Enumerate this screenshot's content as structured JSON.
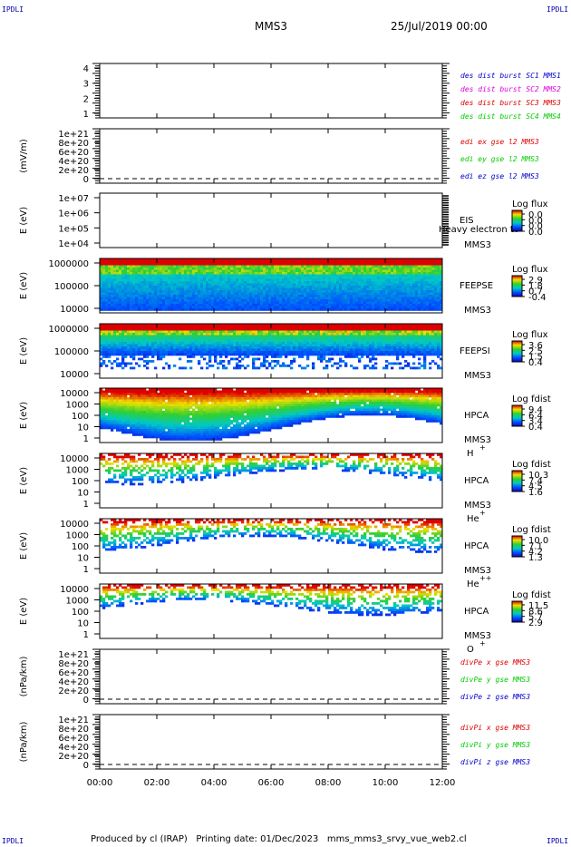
{
  "header": {
    "corner_labels": [
      "IPDLI",
      "IPDLI",
      "IPDLI",
      "IPDLI"
    ],
    "spacecraft": "MMS3",
    "datetime": "25/Jul/2019 00:00"
  },
  "footer": {
    "produced_by": "Produced by cl (IRAP)",
    "printing_date": "Printing date: 01/Dec/2023",
    "filename": "mms_mms3_srvy_vue_web2.cl"
  },
  "time_axis": {
    "ticks": [
      "00:00",
      "02:00",
      "04:00",
      "06:00",
      "08:00",
      "10:00",
      "12:00"
    ],
    "range_hours": [
      0,
      12
    ]
  },
  "colors": {
    "blue": "#0000cc",
    "magenta": "#dd00dd",
    "red": "#dd0000",
    "green": "#00cc00"
  },
  "chart_data": [
    {
      "type": "line",
      "id": "des-dist-burst",
      "yticks": [
        "4",
        "3",
        "2",
        "1"
      ],
      "ylim": [
        0.5,
        4.5
      ],
      "legend": [
        {
          "text": "des dist burst SC1 MMS1",
          "color": "#0000cc"
        },
        {
          "text": "des dist burst SC2 MMS2",
          "color": "#dd00dd"
        },
        {
          "text": "des dist burst SC3 MMS3",
          "color": "#dd0000"
        },
        {
          "text": "des dist burst SC4 MMS4",
          "color": "#00cc00"
        }
      ]
    },
    {
      "type": "line",
      "id": "edi-e-field",
      "ylabel": "(mV/m)",
      "yticks": [
        "1e+21",
        "8e+20",
        "6e+20",
        "4e+20",
        "2e+20",
        "0"
      ],
      "legend": [
        {
          "text": "edi ex gse l2 MMS3",
          "color": "#dd0000"
        },
        {
          "text": "edi ey gse l2 MMS3",
          "color": "#00cc00"
        },
        {
          "text": "edi ez gse l2 MMS3",
          "color": "#0000cc"
        }
      ]
    },
    {
      "type": "heatmap",
      "id": "eis",
      "ylabel": "E (eV)",
      "yticks": [
        "1e+07",
        "1e+06",
        "1e+05",
        "1e+04"
      ],
      "instrument": [
        "EIS",
        "MMS3"
      ],
      "overlay_text": "Heavy electron to",
      "colorbar_title": "Log flux",
      "colorbar_ticks": [
        "0.0",
        "0.0",
        "0.0",
        "0.0"
      ]
    },
    {
      "type": "heatmap",
      "id": "feepse",
      "ylabel": "E (eV)",
      "yticks": [
        "1000000",
        "100000",
        "10000"
      ],
      "instrument": [
        "FEEPSE",
        "MMS3"
      ],
      "colorbar_title": "Log flux",
      "colorbar_ticks": [
        "2.9",
        "1.8",
        "0.7",
        "-0.4"
      ]
    },
    {
      "type": "heatmap",
      "id": "feepsi",
      "ylabel": "E (eV)",
      "yticks": [
        "1000000",
        "100000",
        "10000"
      ],
      "instrument": [
        "FEEPSI",
        "MMS3"
      ],
      "colorbar_title": "Log flux",
      "colorbar_ticks": [
        "3.6",
        "2.5",
        "1.5",
        "0.4"
      ]
    },
    {
      "type": "heatmap",
      "id": "hpca-h",
      "ylabel": "E (eV)",
      "yticks": [
        "10000",
        "1000",
        "100",
        "10",
        "1"
      ],
      "instrument": [
        "HPCA",
        "MMS3"
      ],
      "species": "H",
      "charge": "+",
      "colorbar_title": "Log fdist",
      "colorbar_ticks": [
        "9.4",
        "6.4",
        "3.4",
        "0.4"
      ]
    },
    {
      "type": "heatmap",
      "id": "hpca-he",
      "ylabel": "E (eV)",
      "yticks": [
        "10000",
        "1000",
        "100",
        "10",
        "1"
      ],
      "instrument": [
        "HPCA",
        "MMS3"
      ],
      "species": "He",
      "charge": "+",
      "colorbar_title": "Log fdist",
      "colorbar_ticks": [
        "10.3",
        "7.4",
        "4.5",
        "1.6"
      ]
    },
    {
      "type": "heatmap",
      "id": "hpca-he2",
      "ylabel": "E (eV)",
      "yticks": [
        "10000",
        "1000",
        "100",
        "10",
        "1"
      ],
      "instrument": [
        "HPCA",
        "MMS3"
      ],
      "species": "He",
      "charge": "++",
      "colorbar_title": "Log fdist",
      "colorbar_ticks": [
        "10.0",
        "7.1",
        "4.2",
        "1.3"
      ]
    },
    {
      "type": "heatmap",
      "id": "hpca-o",
      "ylabel": "E (eV)",
      "yticks": [
        "10000",
        "1000",
        "100",
        "10",
        "1"
      ],
      "instrument": [
        "HPCA",
        "MMS3"
      ],
      "species": "O",
      "charge": "+",
      "colorbar_title": "Log fdist",
      "colorbar_ticks": [
        "11.5",
        "8.6",
        "5.7",
        "2.9"
      ]
    },
    {
      "type": "line",
      "id": "divpe",
      "ylabel": "(nPa/km)",
      "yticks": [
        "1e+21",
        "8e+20",
        "6e+20",
        "4e+20",
        "2e+20",
        "0"
      ],
      "legend": [
        {
          "text": "divPe x gse MMS3",
          "color": "#dd0000"
        },
        {
          "text": "divPe y gse MMS3",
          "color": "#00cc00"
        },
        {
          "text": "divPe z gse MMS3",
          "color": "#0000cc"
        }
      ]
    },
    {
      "type": "line",
      "id": "divpi",
      "ylabel": "(nPa/km)",
      "yticks": [
        "1e+21",
        "8e+20",
        "6e+20",
        "4e+20",
        "2e+20",
        "0"
      ],
      "legend": [
        {
          "text": "divPi x gse MMS3",
          "color": "#dd0000"
        },
        {
          "text": "divPi y gse MMS3",
          "color": "#00cc00"
        },
        {
          "text": "divPi z gse MMS3",
          "color": "#0000cc"
        }
      ]
    }
  ]
}
